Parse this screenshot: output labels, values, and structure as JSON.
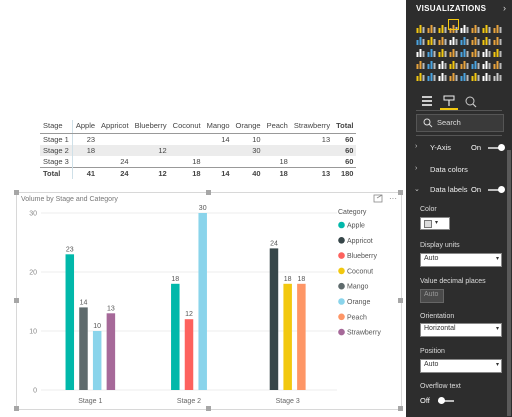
{
  "table": {
    "headers": [
      "Stage",
      "Apple",
      "Appricot",
      "Blueberry",
      "Coconut",
      "Mango",
      "Orange",
      "Peach",
      "Strawberry",
      "Total"
    ],
    "rows": [
      {
        "stage": "Stage 1",
        "cells": [
          "23",
          "",
          "",
          "",
          "14",
          "10",
          "",
          "13",
          "60"
        ]
      },
      {
        "stage": "Stage 2",
        "cells": [
          "18",
          "",
          "12",
          "",
          "",
          "30",
          "",
          "",
          "60"
        ]
      },
      {
        "stage": "Stage 3",
        "cells": [
          "",
          "24",
          "",
          "18",
          "",
          "",
          "18",
          "",
          "60"
        ]
      },
      {
        "stage": "Total",
        "cells": [
          "41",
          "24",
          "12",
          "18",
          "14",
          "40",
          "18",
          "13",
          "180"
        ]
      }
    ]
  },
  "chart": {
    "title": "Volume by Stage and Category",
    "legend_title": "Category",
    "icons": {
      "focus": "focus-mode-icon",
      "more": "more-options-icon"
    },
    "more_glyph": "···"
  },
  "chart_data": {
    "type": "bar",
    "categories": [
      "Stage 1",
      "Stage 2",
      "Stage 3"
    ],
    "ylim": [
      0,
      30
    ],
    "yticks": [
      0,
      10,
      20,
      30
    ],
    "legend": "right",
    "series": [
      {
        "name": "Apple",
        "color": "#01B8AA",
        "values": [
          23,
          18,
          null
        ]
      },
      {
        "name": "Appricot",
        "color": "#374649",
        "values": [
          null,
          null,
          24
        ]
      },
      {
        "name": "Blueberry",
        "color": "#FD625E",
        "values": [
          null,
          12,
          null
        ]
      },
      {
        "name": "Coconut",
        "color": "#F2C80F",
        "values": [
          null,
          null,
          18
        ]
      },
      {
        "name": "Mango",
        "color": "#5F6B6D",
        "values": [
          14,
          null,
          null
        ]
      },
      {
        "name": "Orange",
        "color": "#8AD4EB",
        "values": [
          10,
          30,
          null
        ]
      },
      {
        "name": "Peach",
        "color": "#FE9666",
        "values": [
          null,
          null,
          18
        ]
      },
      {
        "name": "Strawberry",
        "color": "#A66999",
        "values": [
          13,
          null,
          null
        ]
      }
    ]
  },
  "pane": {
    "title": "VISUALIZATIONS",
    "close_glyph": "›",
    "search_placeholder": "Search",
    "sections": {
      "yaxis": {
        "label": "Y-Axis",
        "state": "On"
      },
      "data_colors": {
        "label": "Data colors"
      },
      "data_labels": {
        "label": "Data labels",
        "state": "On"
      }
    },
    "fields": {
      "color_label": "Color",
      "display_units_label": "Display units",
      "display_units_value": "Auto",
      "decimal_label": "Value decimal places",
      "decimal_value": "Auto",
      "orientation_label": "Orientation",
      "orientation_value": "Horizontal",
      "position_label": "Position",
      "position_value": "Auto",
      "overflow_label": "Overflow text",
      "overflow_state": "Off"
    },
    "accent": "#F2C811"
  }
}
